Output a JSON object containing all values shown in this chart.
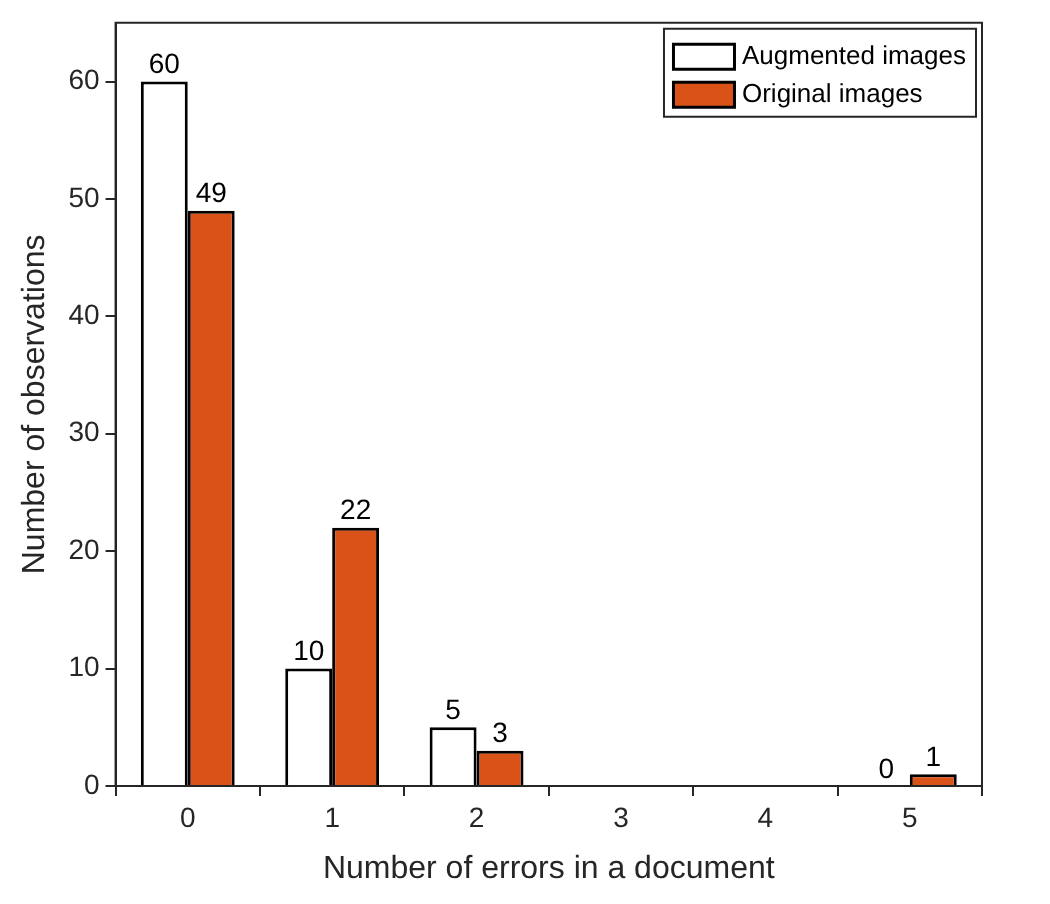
{
  "chart_data": {
    "type": "bar",
    "xlabel": "Number of errors in a document",
    "ylabel": "Number of observations",
    "categories": [
      "0",
      "1",
      "2",
      "3",
      "4",
      "5"
    ],
    "series": [
      {
        "name": "Augmented images",
        "color": "#ffffff",
        "values": [
          60,
          10,
          5,
          0,
          0,
          0
        ],
        "value_labels": [
          "60",
          "10",
          "5",
          null,
          null,
          "0"
        ]
      },
      {
        "name": "Original images",
        "color": "#d95319",
        "values": [
          49,
          22,
          3,
          0,
          0,
          1
        ],
        "value_labels": [
          "49",
          "22",
          "3",
          null,
          null,
          "1"
        ]
      }
    ],
    "ylim": [
      0,
      65
    ],
    "yticks": [
      0,
      10,
      20,
      30,
      40,
      50,
      60
    ],
    "grid": false,
    "legend": "top right"
  }
}
